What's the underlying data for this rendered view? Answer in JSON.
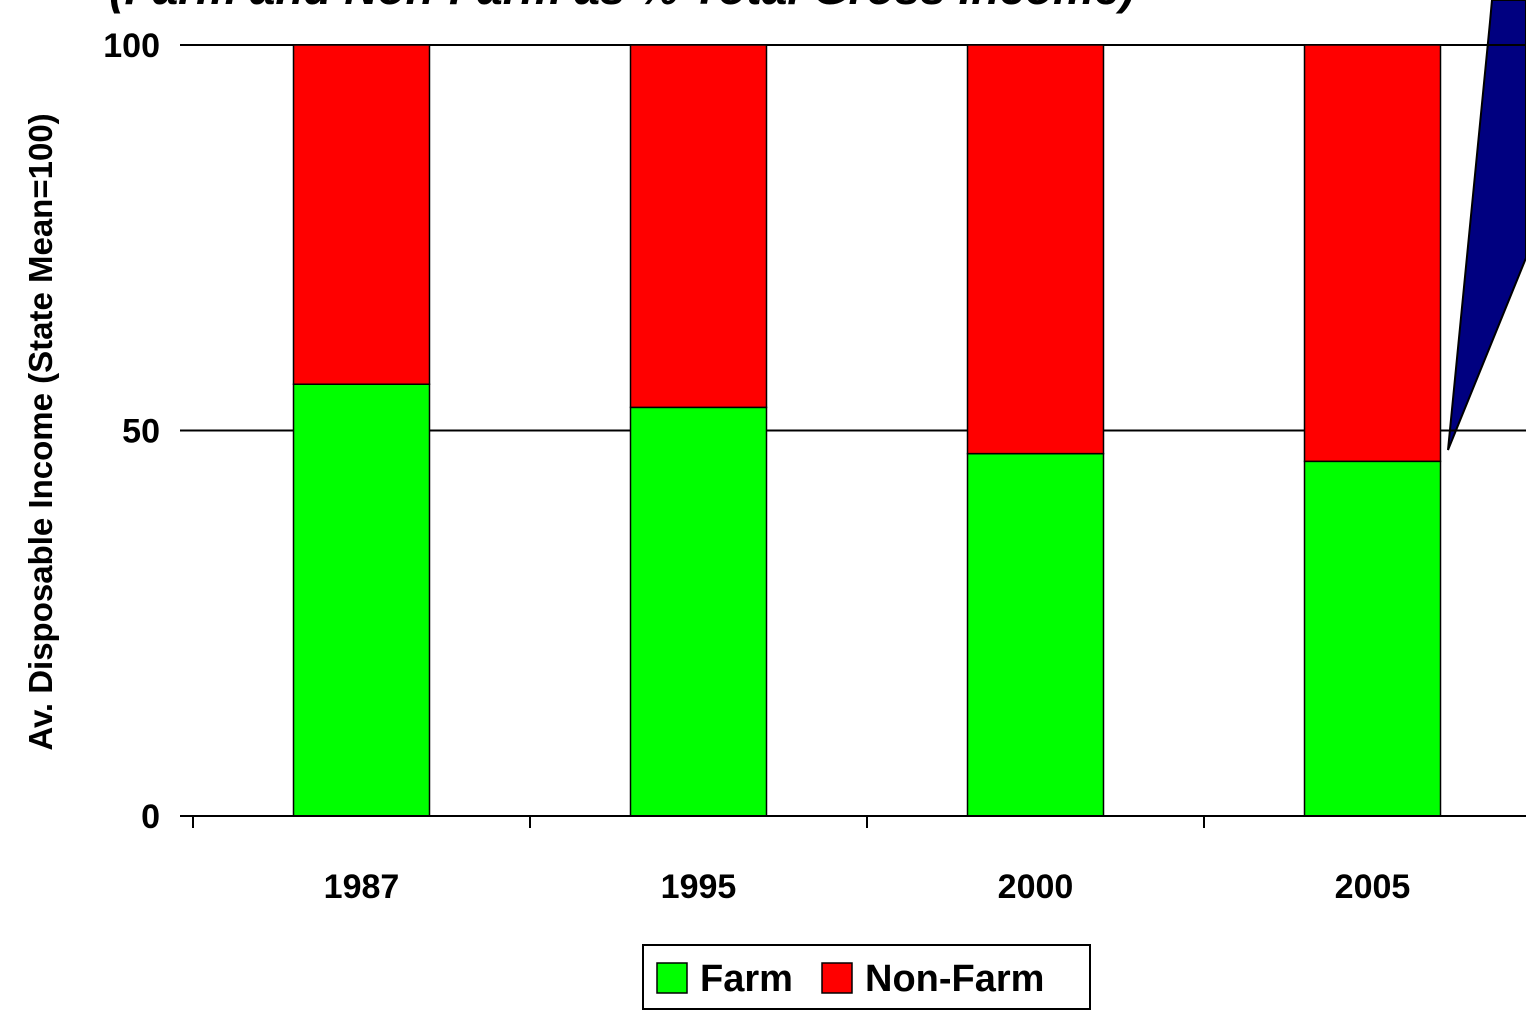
{
  "chart_data": {
    "type": "stacked-bar",
    "title": "(Farm and Non-Farm as % Total Gross Income)",
    "y_label": "Av. Disposable Income (State Mean=100)",
    "categories": [
      "1987",
      "1995",
      "2000",
      "2005"
    ],
    "series": [
      {
        "name": "Farm",
        "color": "#00ff00",
        "values": [
          56,
          53,
          47,
          46
        ]
      },
      {
        "name": "Non-Farm",
        "color": "#ff0000",
        "values": [
          44,
          47,
          53,
          54
        ]
      }
    ],
    "ylim": [
      0,
      100
    ],
    "yticks": [
      0,
      50,
      100
    ],
    "grid": true
  }
}
